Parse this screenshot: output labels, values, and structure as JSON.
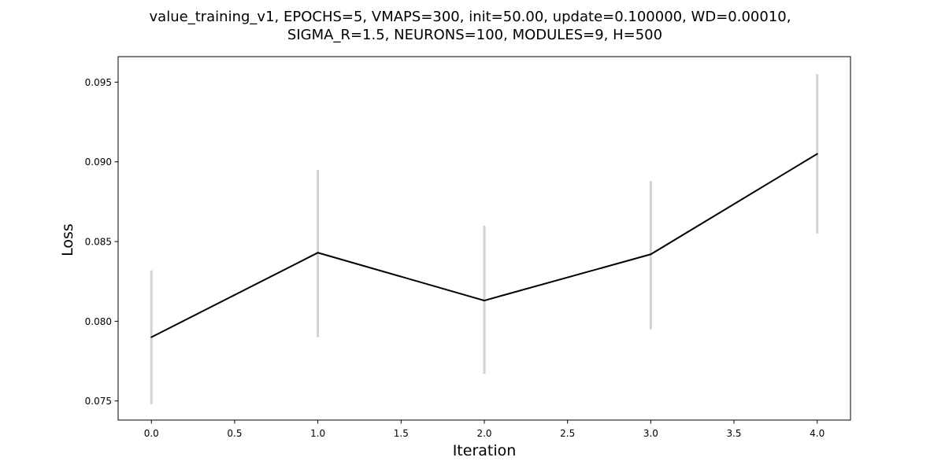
{
  "chart_data": {
    "type": "line",
    "title_line1": "value_training_v1, EPOCHS=5, VMAPS=300, init=50.00, update=0.100000, WD=0.00010,",
    "title_line2": "SIGMA_R=1.5, NEURONS=100, MODULES=9, H=500",
    "xlabel": "Iteration",
    "ylabel": "Loss",
    "xlim": [
      -0.2,
      4.2
    ],
    "ylim": [
      0.0738,
      0.0966
    ],
    "x_ticks": [
      0.0,
      0.5,
      1.0,
      1.5,
      2.0,
      2.5,
      3.0,
      3.5,
      4.0
    ],
    "x_tick_labels": [
      "0.0",
      "0.5",
      "1.0",
      "1.5",
      "2.0",
      "2.5",
      "3.0",
      "3.5",
      "4.0"
    ],
    "y_ticks": [
      0.075,
      0.08,
      0.085,
      0.09,
      0.095
    ],
    "y_tick_labels": [
      "0.075",
      "0.080",
      "0.085",
      "0.090",
      "0.095"
    ],
    "grid": false,
    "series": [
      {
        "x": [
          0,
          1,
          2,
          3,
          4
        ],
        "y": [
          0.079,
          0.0843,
          0.0813,
          0.0842,
          0.0905
        ],
        "error_low": [
          0.0748,
          0.079,
          0.0767,
          0.0795,
          0.0855
        ],
        "error_high": [
          0.0832,
          0.0895,
          0.086,
          0.0888,
          0.0955
        ],
        "line_color": "#000000",
        "error_color": "#d3d3d3"
      }
    ]
  }
}
